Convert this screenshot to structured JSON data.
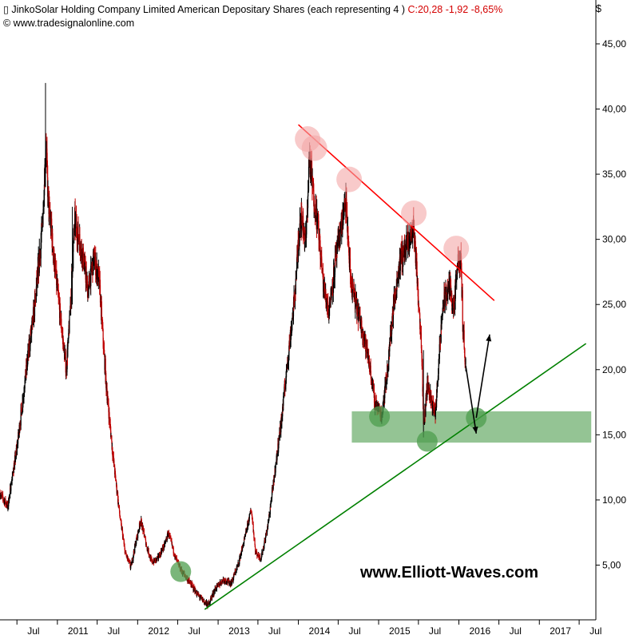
{
  "header": {
    "title": "JinkoSolar Holding Company Limited American Depositary Shares (each representing 4 )",
    "quote": "C:20,28 -1,92 -8,65%",
    "source": "© www.tradesignalonline.com",
    "currency": "$"
  },
  "watermark": "www.Elliott-Waves.com",
  "colors": {
    "up_candle": "#000000",
    "down_candle": "#c00000",
    "resistance_line": "#ff0000",
    "support_line": "#008000",
    "support_zone": "#5aa55a",
    "top_markers": "#f4a6a6",
    "bottom_markers": "#4e9e4e",
    "arrows": "#000000"
  },
  "chart_data": {
    "type": "candlestick",
    "y_axis": {
      "side": "right",
      "range": [
        0.8,
        48
      ],
      "ticks": [
        "5,00",
        "10,00",
        "15,00",
        "20,00",
        "25,00",
        "30,00",
        "35,00",
        "40,00",
        "45,00"
      ],
      "tick_values": [
        5,
        10,
        15,
        20,
        25,
        30,
        35,
        40,
        45
      ]
    },
    "x_axis": {
      "start": "2010-04-15",
      "end": "2017-09-15",
      "ticks": [
        {
          "date": "2010-07-01",
          "label": "Jul"
        },
        {
          "date": "2011-01-01",
          "label": "2011"
        },
        {
          "date": "2011-07-01",
          "label": "Jul"
        },
        {
          "date": "2012-01-01",
          "label": "2012"
        },
        {
          "date": "2012-07-01",
          "label": "Jul"
        },
        {
          "date": "2013-01-01",
          "label": "2013"
        },
        {
          "date": "2013-07-01",
          "label": "Jul"
        },
        {
          "date": "2014-01-01",
          "label": "2014"
        },
        {
          "date": "2014-07-01",
          "label": "Jul"
        },
        {
          "date": "2015-01-01",
          "label": "2015"
        },
        {
          "date": "2015-07-01",
          "label": "Jul"
        },
        {
          "date": "2016-01-01",
          "label": "2016"
        },
        {
          "date": "2016-07-01",
          "label": "Jul"
        },
        {
          "date": "2017-01-01",
          "label": "2017"
        },
        {
          "date": "2017-07-01",
          "label": "Jul"
        }
      ]
    },
    "price_path": [
      [
        "2010-04-15",
        10.5
      ],
      [
        "2010-05-20",
        9.5
      ],
      [
        "2010-07-01",
        14.0
      ],
      [
        "2010-08-20",
        21.0
      ],
      [
        "2010-09-20",
        25.0
      ],
      [
        "2010-10-25",
        31.0
      ],
      [
        "2010-11-10",
        37.5
      ],
      [
        "2010-11-20",
        33.0
      ],
      [
        "2010-12-20",
        28.0
      ],
      [
        "2011-01-15",
        24.0
      ],
      [
        "2011-02-10",
        20.0
      ],
      [
        "2011-02-25",
        23.5
      ],
      [
        "2011-03-20",
        31.5
      ],
      [
        "2011-04-25",
        29.0
      ],
      [
        "2011-05-20",
        26.0
      ],
      [
        "2011-06-15",
        28.5
      ],
      [
        "2011-07-10",
        27.0
      ],
      [
        "2011-08-10",
        19.0
      ],
      [
        "2011-09-10",
        13.5
      ],
      [
        "2011-10-10",
        9.0
      ],
      [
        "2011-11-05",
        6.0
      ],
      [
        "2011-12-01",
        4.8
      ],
      [
        "2011-12-20",
        6.5
      ],
      [
        "2012-01-15",
        8.5
      ],
      [
        "2012-02-10",
        6.5
      ],
      [
        "2012-03-05",
        5.2
      ],
      [
        "2012-04-01",
        5.5
      ],
      [
        "2012-05-01",
        6.5
      ],
      [
        "2012-05-20",
        7.5
      ],
      [
        "2012-06-20",
        5.6
      ],
      [
        "2012-07-20",
        4.5
      ],
      [
        "2012-08-20",
        3.8
      ],
      [
        "2012-10-01",
        2.7
      ],
      [
        "2012-11-15",
        1.9
      ],
      [
        "2012-12-20",
        3.2
      ],
      [
        "2013-01-25",
        3.9
      ],
      [
        "2013-03-01",
        3.6
      ],
      [
        "2013-04-01",
        5.0
      ],
      [
        "2013-05-01",
        7.0
      ],
      [
        "2013-06-01",
        9.3
      ],
      [
        "2013-06-20",
        6.0
      ],
      [
        "2013-07-15",
        5.5
      ],
      [
        "2013-08-15",
        8.0
      ],
      [
        "2013-09-15",
        12.0
      ],
      [
        "2013-10-15",
        16.0
      ],
      [
        "2013-11-15",
        21.0
      ],
      [
        "2013-12-15",
        25.5
      ],
      [
        "2014-01-10",
        32.0
      ],
      [
        "2014-02-05",
        30.0
      ],
      [
        "2014-02-20",
        36.5
      ],
      [
        "2014-03-10",
        33.5
      ],
      [
        "2014-04-01",
        31.0
      ],
      [
        "2014-04-25",
        26.5
      ],
      [
        "2014-05-20",
        24.5
      ],
      [
        "2014-06-20",
        28.5
      ],
      [
        "2014-08-05",
        33.0
      ],
      [
        "2014-08-25",
        27.0
      ],
      [
        "2014-09-20",
        25.0
      ],
      [
        "2014-10-20",
        23.0
      ],
      [
        "2014-11-20",
        20.5
      ],
      [
        "2014-12-15",
        17.5
      ],
      [
        "2015-01-15",
        16.5
      ],
      [
        "2015-02-10",
        20.0
      ],
      [
        "2015-03-10",
        25.0
      ],
      [
        "2015-04-10",
        28.5
      ],
      [
        "2015-05-10",
        29.5
      ],
      [
        "2015-06-10",
        31.0
      ],
      [
        "2015-06-25",
        27.0
      ],
      [
        "2015-07-15",
        22.0
      ],
      [
        "2015-07-25",
        15.5
      ],
      [
        "2015-08-10",
        19.0
      ],
      [
        "2015-09-15",
        16.5
      ],
      [
        "2015-10-20",
        25.0
      ],
      [
        "2015-11-20",
        26.5
      ],
      [
        "2015-12-10",
        24.5
      ],
      [
        "2015-12-25",
        28.0
      ],
      [
        "2016-01-10",
        28.5
      ],
      [
        "2016-01-20",
        23.0
      ],
      [
        "2016-02-01",
        20.3
      ]
    ],
    "resistance_line": [
      [
        "2014-01-01",
        38.8
      ],
      [
        "2016-06-10",
        25.3
      ]
    ],
    "support_line": [
      [
        "2012-11-01",
        1.6
      ],
      [
        "2017-08-01",
        22.0
      ]
    ],
    "support_zone": {
      "from": "2014-09-01",
      "to": "2017-08-25",
      "low": 14.4,
      "high": 16.8
    },
    "top_markers": [
      [
        "2014-02-12",
        37.7
      ],
      [
        "2014-03-15",
        37.0
      ],
      [
        "2014-08-20",
        34.6
      ],
      [
        "2015-06-10",
        32.0
      ],
      [
        "2015-12-20",
        29.3
      ]
    ],
    "bottom_markers": [
      [
        "2012-07-15",
        4.5
      ],
      [
        "2015-01-05",
        16.4
      ],
      [
        "2015-08-10",
        14.5
      ],
      [
        "2016-03-20",
        16.3
      ]
    ],
    "projection_arrows": [
      {
        "from": [
          "2016-02-01",
          20.3
        ],
        "to": [
          "2016-03-20",
          15.1
        ]
      },
      {
        "from": [
          "2016-03-20",
          16.3
        ],
        "to": [
          "2016-05-20",
          22.7
        ]
      }
    ]
  }
}
